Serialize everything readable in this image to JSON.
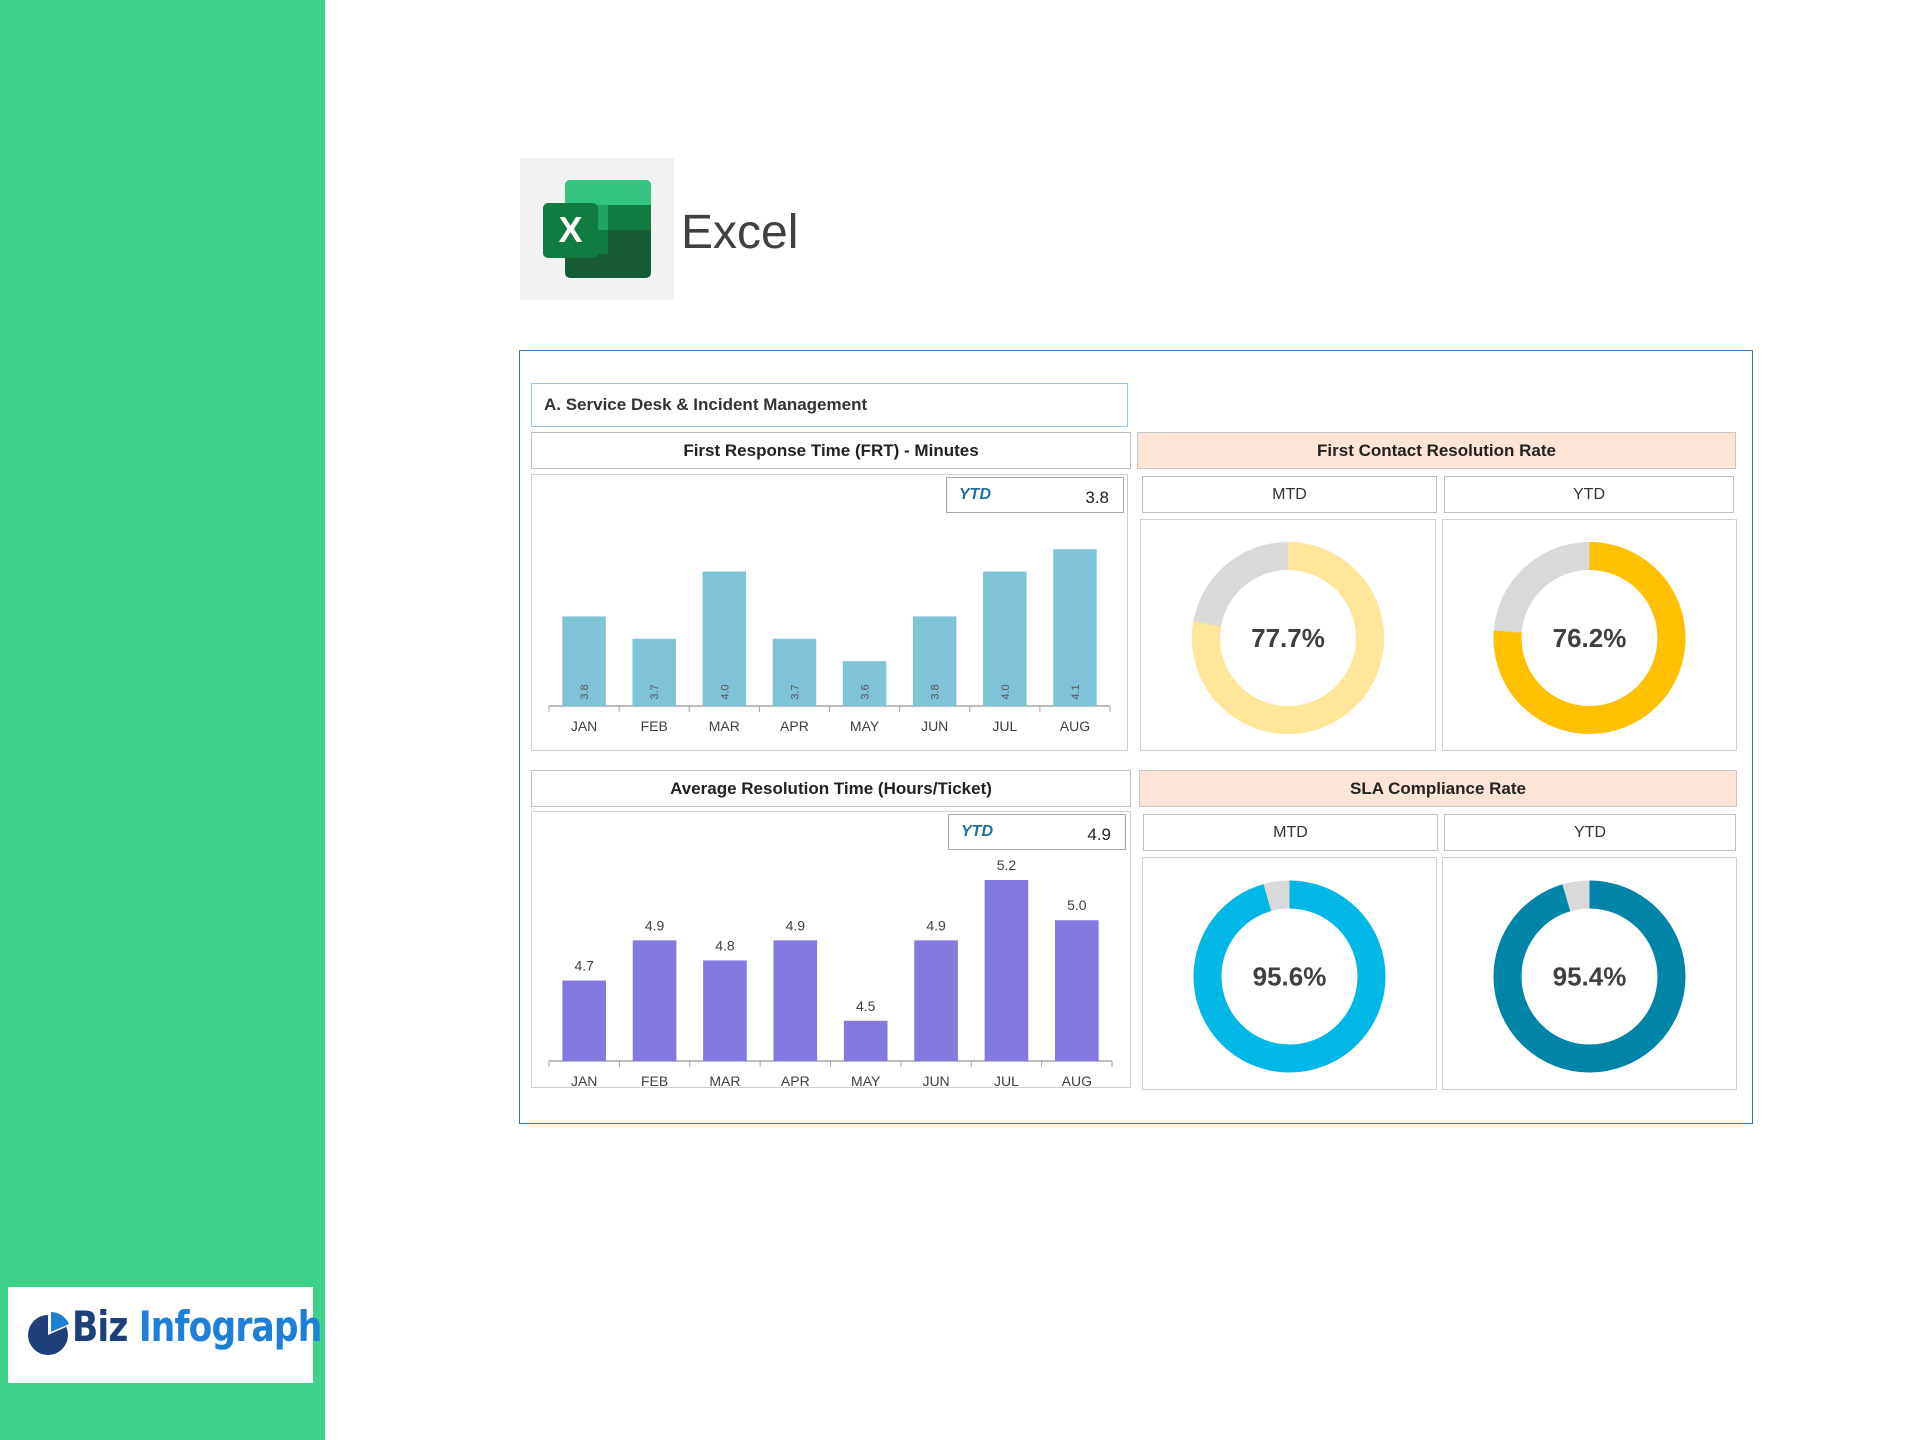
{
  "excel": {
    "label": "Excel"
  },
  "brand": {
    "name_part1": "Biz",
    "name_part2": "Infograph"
  },
  "section_title": "A. Service Desk & Incident Management",
  "chart_data": [
    {
      "type": "bar",
      "title": "First Response Time (FRT) - Minutes",
      "categories": [
        "JAN",
        "FEB",
        "MAR",
        "APR",
        "MAY",
        "JUN",
        "JUL",
        "AUG"
      ],
      "values": [
        3.8,
        3.7,
        4.0,
        3.7,
        3.6,
        3.8,
        4.0,
        4.1
      ],
      "value_labels": [
        "3.8",
        "3.7",
        "4.0",
        "3.7",
        "3.6",
        "3.8",
        "4.0",
        "4.1"
      ],
      "ylim": [
        3.4,
        4.15
      ],
      "color": "#7fc3d7",
      "label_placement": "inside-vertical",
      "ytd_label": "YTD",
      "ytd_value": "3.8"
    },
    {
      "type": "bar",
      "title": "Average Resolution Time (Hours/Ticket)",
      "categories": [
        "JAN",
        "FEB",
        "MAR",
        "APR",
        "MAY",
        "JUN",
        "JUL",
        "AUG"
      ],
      "values": [
        4.7,
        4.9,
        4.8,
        4.9,
        4.5,
        4.9,
        5.2,
        5.0
      ],
      "value_labels": [
        "4.7",
        "4.9",
        "4.8",
        "4.9",
        "4.5",
        "4.9",
        "5.2",
        "5.0"
      ],
      "ylim": [
        4.3,
        5.2
      ],
      "color": "#8479e1",
      "label_placement": "above",
      "ytd_label": "YTD",
      "ytd_value": "4.9"
    },
    {
      "type": "pie",
      "title": "First Contact Resolution Rate",
      "donuts": [
        {
          "label": "MTD",
          "value": 77.7,
          "value_text": "77.7%",
          "color": "#ffe699",
          "remainder_color": "#d9d9d9"
        },
        {
          "label": "YTD",
          "value": 76.2,
          "value_text": "76.2%",
          "color": "#ffc000",
          "remainder_color": "#d9d9d9"
        }
      ]
    },
    {
      "type": "pie",
      "title": "SLA Compliance Rate",
      "donuts": [
        {
          "label": "MTD",
          "value": 95.6,
          "value_text": "95.6%",
          "color": "#00b8e6",
          "remainder_color": "#d9d9d9"
        },
        {
          "label": "YTD",
          "value": 95.4,
          "value_text": "95.4%",
          "color": "#0084a8",
          "remainder_color": "#d9d9d9"
        }
      ]
    }
  ]
}
